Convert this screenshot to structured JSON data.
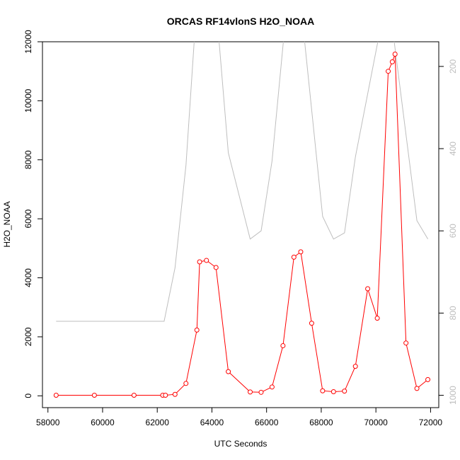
{
  "chart_data": {
    "type": "line",
    "title": "ORCAS RF14vlonS H2O_NOAA",
    "xlabel": "UTC Seconds",
    "ylabel": "H2O_NOAA",
    "xlim": [
      57800,
      72300
    ],
    "ylim": [
      -400,
      12000
    ],
    "x_ticks": [
      58000,
      60000,
      62000,
      64000,
      66000,
      68000,
      70000,
      72000
    ],
    "y_ticks": [
      0,
      2000,
      4000,
      6000,
      8000,
      10000,
      12000
    ],
    "y2_ticks": [
      200,
      400,
      600,
      800,
      1000
    ],
    "y2lim": [
      1030,
      140
    ],
    "grid": false,
    "series": [
      {
        "axis": "left",
        "color": "#ff0000",
        "style": "line-with-circles",
        "x": [
          58300,
          59700,
          61150,
          62200,
          62300,
          62650,
          63050,
          63450,
          63550,
          63800,
          64150,
          64600,
          65400,
          65800,
          66200,
          66600,
          67000,
          67250,
          67650,
          68050,
          68450,
          68850,
          69250,
          69700,
          70050,
          70450,
          70600,
          70700,
          71100,
          71500,
          71900
        ],
        "y": [
          20,
          20,
          20,
          20,
          20,
          50,
          420,
          2230,
          4540,
          4590,
          4350,
          820,
          130,
          120,
          300,
          1700,
          4700,
          4880,
          2460,
          170,
          140,
          160,
          1000,
          3630,
          2630,
          11000,
          11320,
          11580,
          1790,
          250,
          550
        ]
      },
      {
        "axis": "right",
        "color": "#bebebe",
        "style": "line",
        "x": [
          58300,
          62250,
          62650,
          63050,
          63400,
          64200,
          64600,
          65400,
          65800,
          66200,
          66700,
          67300,
          68050,
          68450,
          68850,
          69250,
          70100,
          70650,
          71500,
          71900
        ],
        "y": [
          820,
          820,
          690,
          440,
          90,
          90,
          410,
          620,
          600,
          430,
          80,
          80,
          565,
          620,
          605,
          420,
          130,
          130,
          575,
          620
        ]
      }
    ]
  }
}
